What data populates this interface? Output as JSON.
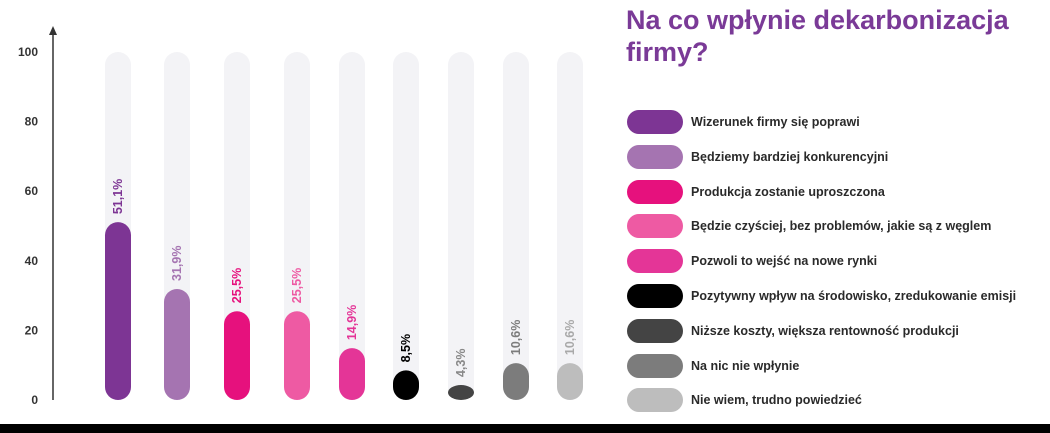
{
  "title": "Na co wpłynie dekarbonizacja firmy?",
  "chart_data": {
    "type": "bar",
    "orientation": "vertical",
    "ylim": [
      0,
      100
    ],
    "yticks": [
      0,
      20,
      40,
      60,
      80,
      100
    ],
    "grid": false,
    "legend_position": "right",
    "categories": [
      "Wizerunek firmy się poprawi",
      "Będziemy bardziej konkurencyjni",
      "Produkcja zostanie uproszczona",
      "Będzie czyściej, bez problemów, jakie są z węglem",
      "Pozwoli to wejść na nowe rynki",
      "Pozytywny wpływ na środowisko, zredukowanie emisji",
      "Niższe koszty, większa rentowność produkcji",
      "Na nic nie wpłynie",
      "Nie wiem, trudno powiedzieć"
    ],
    "values": [
      51.1,
      31.9,
      25.5,
      25.5,
      14.9,
      8.5,
      4.3,
      10.6,
      10.6
    ],
    "value_labels": [
      "51,1%",
      "31,9%",
      "25,5%",
      "25,5%",
      "14,9%",
      "8,5%",
      "4,3%",
      "10,6%",
      "10,6%"
    ],
    "colors": [
      "#7d3594",
      "#a574b1",
      "#e6117d",
      "#ee5aa3",
      "#e43597",
      "#000000",
      "#444444",
      "#7c7c7c",
      "#bdbdbd"
    ],
    "label_colors": [
      "#7d3594",
      "#a574b1",
      "#e6117d",
      "#ee5aa3",
      "#e43597",
      "#000000",
      "#888888",
      "#7c7c7c",
      "#a9a9a9"
    ]
  }
}
